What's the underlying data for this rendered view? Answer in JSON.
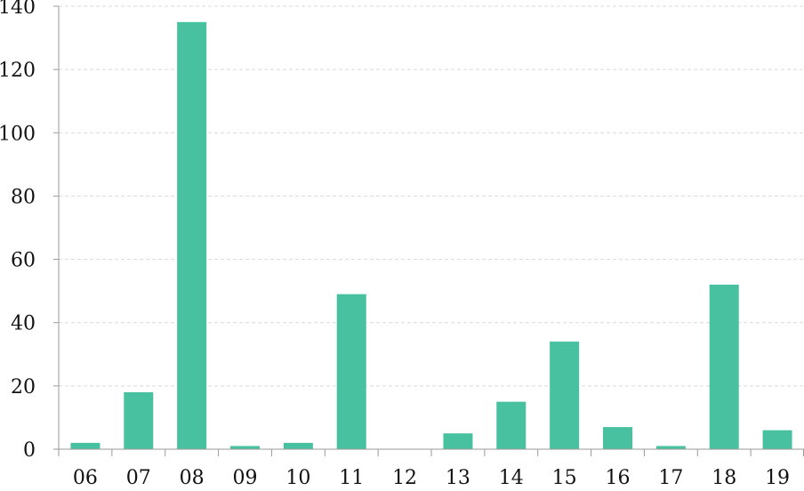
{
  "chart_data": {
    "type": "bar",
    "title": "",
    "xlabel": "",
    "ylabel": "",
    "categories": [
      "06",
      "07",
      "08",
      "09",
      "10",
      "11",
      "12",
      "13",
      "14",
      "15",
      "16",
      "17",
      "18",
      "19"
    ],
    "values": [
      2,
      18,
      135,
      1,
      2,
      49,
      0,
      5,
      15,
      34,
      7,
      1,
      52,
      6
    ],
    "ylim": [
      0,
      140
    ],
    "yticks": [
      "0",
      "20",
      "40",
      "60",
      "80",
      "100",
      "120",
      "140"
    ],
    "grid": true,
    "grid_style": "dashed horizontal",
    "bar_color": "#47c1a0",
    "axis_color": "#9a9a9a",
    "grid_color": "#d9d9d9"
  }
}
